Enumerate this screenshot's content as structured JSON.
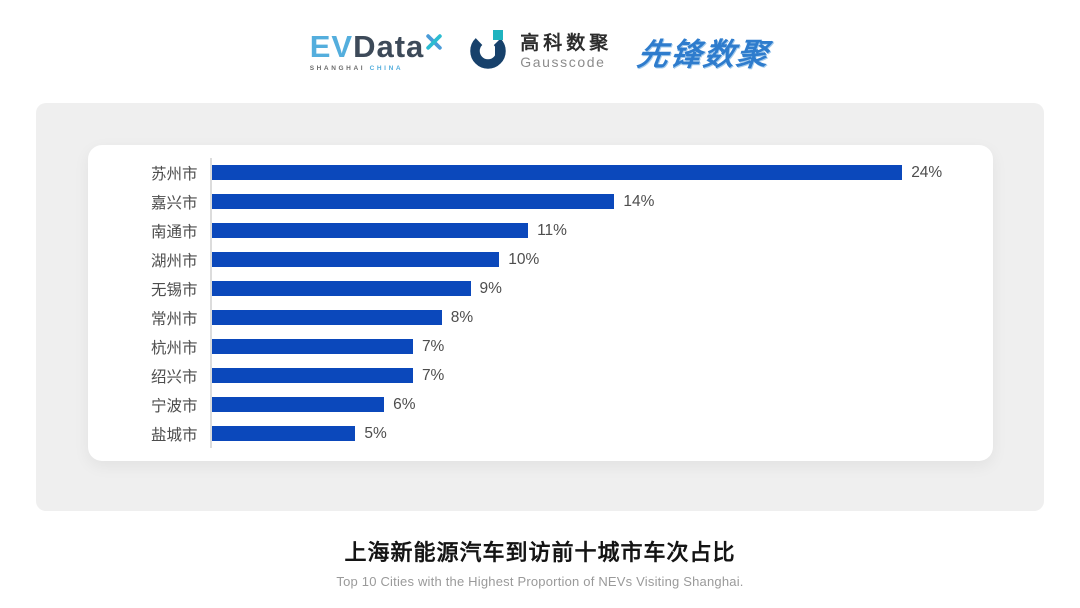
{
  "header": {
    "evdata": {
      "ev": "EV",
      "data": "Data",
      "sub_left": "SHANGHAI",
      "sub_right": "CHINA"
    },
    "gausscode": {
      "name_cn": "高科数聚",
      "name_en": "Gausscode"
    },
    "pioneer": {
      "text": "先锋数聚"
    }
  },
  "chart_data": {
    "type": "bar",
    "orientation": "horizontal",
    "categories": [
      "苏州市",
      "嘉兴市",
      "南通市",
      "湖州市",
      "无锡市",
      "常州市",
      "杭州市",
      "绍兴市",
      "宁波市",
      "盐城市"
    ],
    "values": [
      24,
      14,
      11,
      10,
      9,
      8,
      7,
      7,
      6,
      5
    ],
    "value_labels": [
      "24%",
      "14%",
      "11%",
      "10%",
      "9%",
      "8%",
      "7%",
      "7%",
      "6%",
      "5%"
    ],
    "xlim": [
      0,
      26
    ],
    "grid": false,
    "legend": false,
    "bar_color": "#0b48bb",
    "title": "上海新能源汽车到访前十城市车次占比",
    "subtitle": "Top 10 Cities with the Highest Proportion of  NEVs Visiting Shanghai."
  },
  "colors": {
    "bar": "#0b48bb",
    "panel_gray": "#efefef",
    "axis_line": "#dcdcdc",
    "evdata_blue": "#54aedd",
    "evdata_dark": "#3d4a59",
    "gauss_navy": "#17416b",
    "gauss_teal": "#1fb3bf",
    "pioneer_blue": "#2e7ccd"
  }
}
